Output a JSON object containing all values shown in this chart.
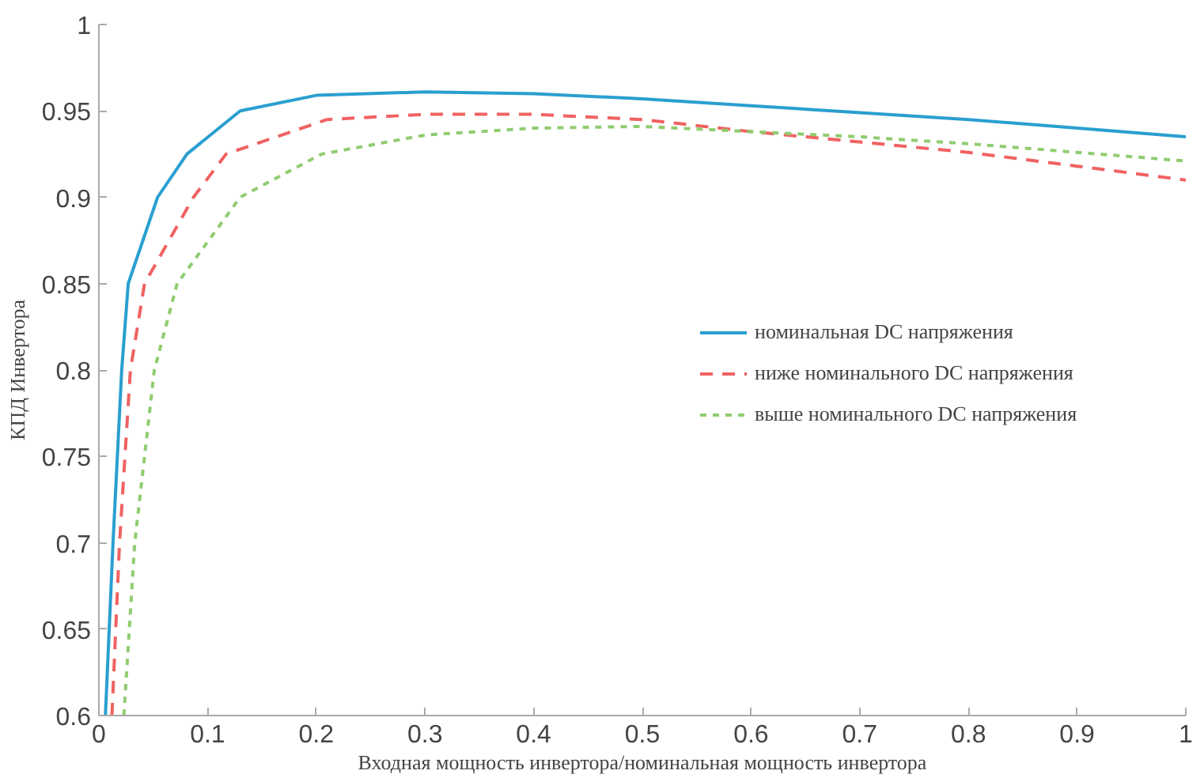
{
  "chart_data": {
    "type": "line",
    "xlabel": "Входная мощность инвертора/номинальная мощность инвертора",
    "ylabel": "КПД Инвертора",
    "xlim": [
      0,
      1
    ],
    "ylim": [
      0.6,
      1
    ],
    "xticks": [
      0,
      0.1,
      0.2,
      0.3,
      0.4,
      0.5,
      0.6,
      0.7,
      0.8,
      0.9,
      1
    ],
    "yticks": [
      0.6,
      0.65,
      0.7,
      0.75,
      0.8,
      0.85,
      0.9,
      0.95,
      1
    ],
    "grid": false,
    "legend": "right",
    "marker": "none",
    "series": [
      {
        "name": "номинальная DC напряжения",
        "color": "#2a9fd0",
        "line_style": "solid",
        "x": [
          0.006,
          0.013,
          0.021,
          0.027,
          0.054,
          0.081,
          0.13,
          0.2,
          0.3,
          0.4,
          0.5,
          0.6,
          0.7,
          0.8,
          0.9,
          1
        ],
        "values": [
          0.6,
          0.7,
          0.8,
          0.85,
          0.9,
          0.925,
          0.95,
          0.959,
          0.961,
          0.96,
          0.957,
          0.953,
          0.949,
          0.945,
          0.94,
          0.935
        ]
      },
      {
        "name": "ниже номинального DC напряжения",
        "color": "#f06262",
        "line_style": "dashed",
        "x": [
          0.012,
          0.019,
          0.029,
          0.042,
          0.087,
          0.117,
          0.21,
          0.3,
          0.4,
          0.5,
          0.6,
          0.7,
          0.8,
          0.9,
          1
        ],
        "values": [
          0.6,
          0.7,
          0.8,
          0.85,
          0.9,
          0.925,
          0.945,
          0.948,
          0.948,
          0.945,
          0.938,
          0.932,
          0.926,
          0.918,
          0.91
        ]
      },
      {
        "name": "выше номинального DC напряжения",
        "color": "#90cc70",
        "line_style": "dotted",
        "x": [
          0.023,
          0.033,
          0.051,
          0.072,
          0.13,
          0.205,
          0.3,
          0.4,
          0.5,
          0.6,
          0.7,
          0.8,
          0.9,
          1
        ],
        "values": [
          0.6,
          0.7,
          0.8,
          0.85,
          0.9,
          0.925,
          0.936,
          0.94,
          0.941,
          0.938,
          0.935,
          0.931,
          0.926,
          0.921
        ]
      }
    ]
  }
}
